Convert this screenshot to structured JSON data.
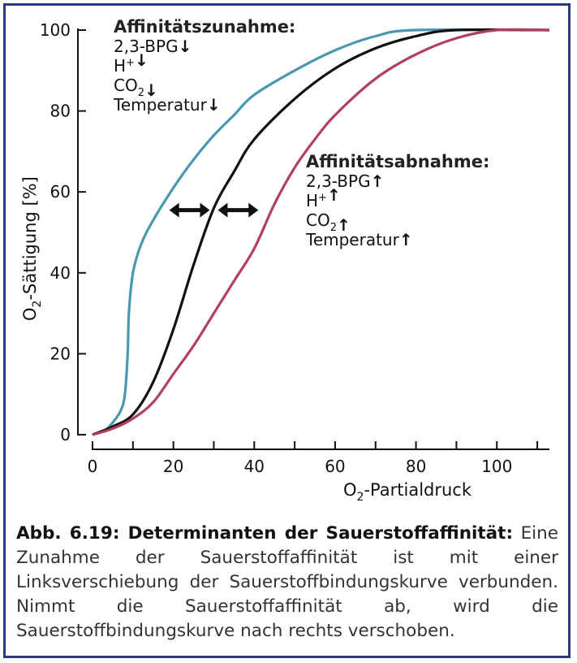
{
  "chart_data": {
    "type": "line",
    "xlabel": {
      "main": "O",
      "sub": "2",
      "rest": "-Partialdruck"
    },
    "ylabel": {
      "main": "O",
      "sub": "2",
      "rest": "-Sättigung [%]"
    },
    "xlim": [
      0,
      113
    ],
    "ylim": [
      0,
      100
    ],
    "x_ticks": [
      0,
      20,
      40,
      60,
      80,
      100
    ],
    "x_minor_ticks": [
      10,
      30,
      50,
      70,
      90,
      110
    ],
    "y_ticks": [
      0,
      20,
      40,
      60,
      80,
      100
    ],
    "grid": false,
    "legend": "none",
    "series": [
      {
        "color": "#4a97b0",
        "points": [
          [
            0,
            0
          ],
          [
            3,
            1
          ],
          [
            5,
            3
          ],
          [
            7,
            6
          ],
          [
            8,
            10
          ],
          [
            8.7,
            20
          ],
          [
            9,
            30
          ],
          [
            10,
            40
          ],
          [
            12,
            47
          ],
          [
            15,
            53
          ],
          [
            20,
            61
          ],
          [
            25,
            68
          ],
          [
            30,
            74
          ],
          [
            35,
            79
          ],
          [
            40,
            84
          ],
          [
            50,
            90
          ],
          [
            60,
            95
          ],
          [
            70,
            98.5
          ],
          [
            80,
            100
          ],
          [
            113,
            100
          ]
        ]
      },
      {
        "color": "#111111",
        "points": [
          [
            0,
            0
          ],
          [
            5,
            2
          ],
          [
            10,
            5
          ],
          [
            15,
            13
          ],
          [
            20,
            26
          ],
          [
            25,
            42
          ],
          [
            30,
            56
          ],
          [
            35,
            65
          ],
          [
            40,
            73
          ],
          [
            50,
            83
          ],
          [
            60,
            90.5
          ],
          [
            70,
            95.5
          ],
          [
            80,
            98.5
          ],
          [
            90,
            100
          ],
          [
            113,
            100
          ]
        ]
      },
      {
        "color": "#b0405e",
        "points": [
          [
            0,
            0
          ],
          [
            5,
            1.5
          ],
          [
            10,
            4
          ],
          [
            15,
            8
          ],
          [
            20,
            15
          ],
          [
            25,
            22
          ],
          [
            30,
            30
          ],
          [
            35,
            38
          ],
          [
            40,
            46
          ],
          [
            45,
            57
          ],
          [
            50,
            66
          ],
          [
            55,
            73
          ],
          [
            60,
            79
          ],
          [
            70,
            88
          ],
          [
            80,
            94
          ],
          [
            90,
            98
          ],
          [
            100,
            100
          ],
          [
            113,
            100
          ]
        ]
      }
    ],
    "arrows": [
      {
        "from_x": 19,
        "to_x": 29,
        "y": 55.5
      },
      {
        "from_x": 31,
        "to_x": 41,
        "y": 55.5
      }
    ]
  },
  "annotations": {
    "increase": {
      "title": "Affinitätszunahme:",
      "items": [
        {
          "text": "2,3-BPG",
          "sup": "",
          "sub": "",
          "arrow": "↓"
        },
        {
          "text": "H",
          "sup": "+",
          "sub": "",
          "arrow": "↓"
        },
        {
          "text": "CO",
          "sup": "",
          "sub": "2",
          "arrow": "↓"
        },
        {
          "text": "Temperatur",
          "sup": "",
          "sub": "",
          "arrow": "↓"
        }
      ]
    },
    "decrease": {
      "title": "Affinitätsabnahme:",
      "items": [
        {
          "text": "2,3-BPG",
          "sup": "",
          "sub": "",
          "arrow": "↑"
        },
        {
          "text": "H",
          "sup": "+",
          "sub": "",
          "arrow": "↑"
        },
        {
          "text": "CO",
          "sup": "",
          "sub": "2",
          "arrow": "↑"
        },
        {
          "text": "Temperatur",
          "sup": "",
          "sub": "",
          "arrow": "↑"
        }
      ]
    }
  },
  "caption": {
    "title": "Abb. 6.19: Determinanten der Sauerstoffaffinität:",
    "body": " Eine Zunahme der Sauerstoffaffinität ist mit einer Linksverschiebung der Sauerstoffbindungskurve verbunden. Nimmt die Sauerstoffaffinität ab, wird die Sauerstoffbindungskurve nach rechts verschoben."
  },
  "colors": {
    "frame": "#2b3a7c"
  }
}
